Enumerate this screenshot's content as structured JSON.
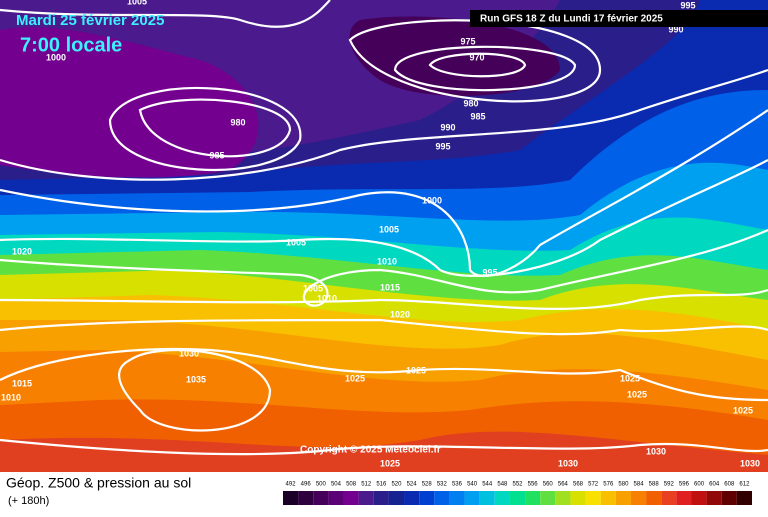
{
  "header": {
    "date": "Mardi 25 février 2025",
    "time": "7:00 locale",
    "run": "Run GFS 18 Z du Lundi 17 février 2025"
  },
  "copyright": "Copyright © 2025 Meteociel.fr",
  "footer": {
    "title": "Géop. Z500 & pression au sol",
    "lead_time": "(+ 180h)"
  },
  "isobar_labels": [
    1000,
    1005,
    995,
    990,
    975,
    970,
    980,
    985,
    980,
    990,
    985,
    995,
    1000,
    1005,
    1005,
    1020,
    1010,
    995,
    1005,
    1010,
    1015,
    1020,
    1030,
    1035,
    1025,
    1025,
    1015,
    1025,
    1025,
    1010,
    1025,
    1030,
    1030,
    1030,
    1025
  ],
  "colorbar": {
    "values": [
      492,
      496,
      500,
      504,
      508,
      512,
      516,
      520,
      524,
      528,
      532,
      536,
      540,
      544,
      548,
      552,
      556,
      560,
      564,
      568,
      572,
      576,
      580,
      584,
      588,
      592,
      596,
      600,
      604,
      608,
      612
    ],
    "colors": [
      "#1a0026",
      "#2e003e",
      "#45005a",
      "#5c0075",
      "#73008f",
      "#4b1a8c",
      "#2a1e8a",
      "#14238f",
      "#0a2ab0",
      "#0040d0",
      "#0060e8",
      "#0080f0",
      "#00a0f0",
      "#00c0e0",
      "#00d8c0",
      "#00e090",
      "#20e060",
      "#60e040",
      "#a0e020",
      "#d8e000",
      "#f8e000",
      "#f8c000",
      "#f8a000",
      "#f88000",
      "#f06000",
      "#e84020",
      "#e02020",
      "#c01010",
      "#900808",
      "#600000",
      "#300000"
    ]
  }
}
